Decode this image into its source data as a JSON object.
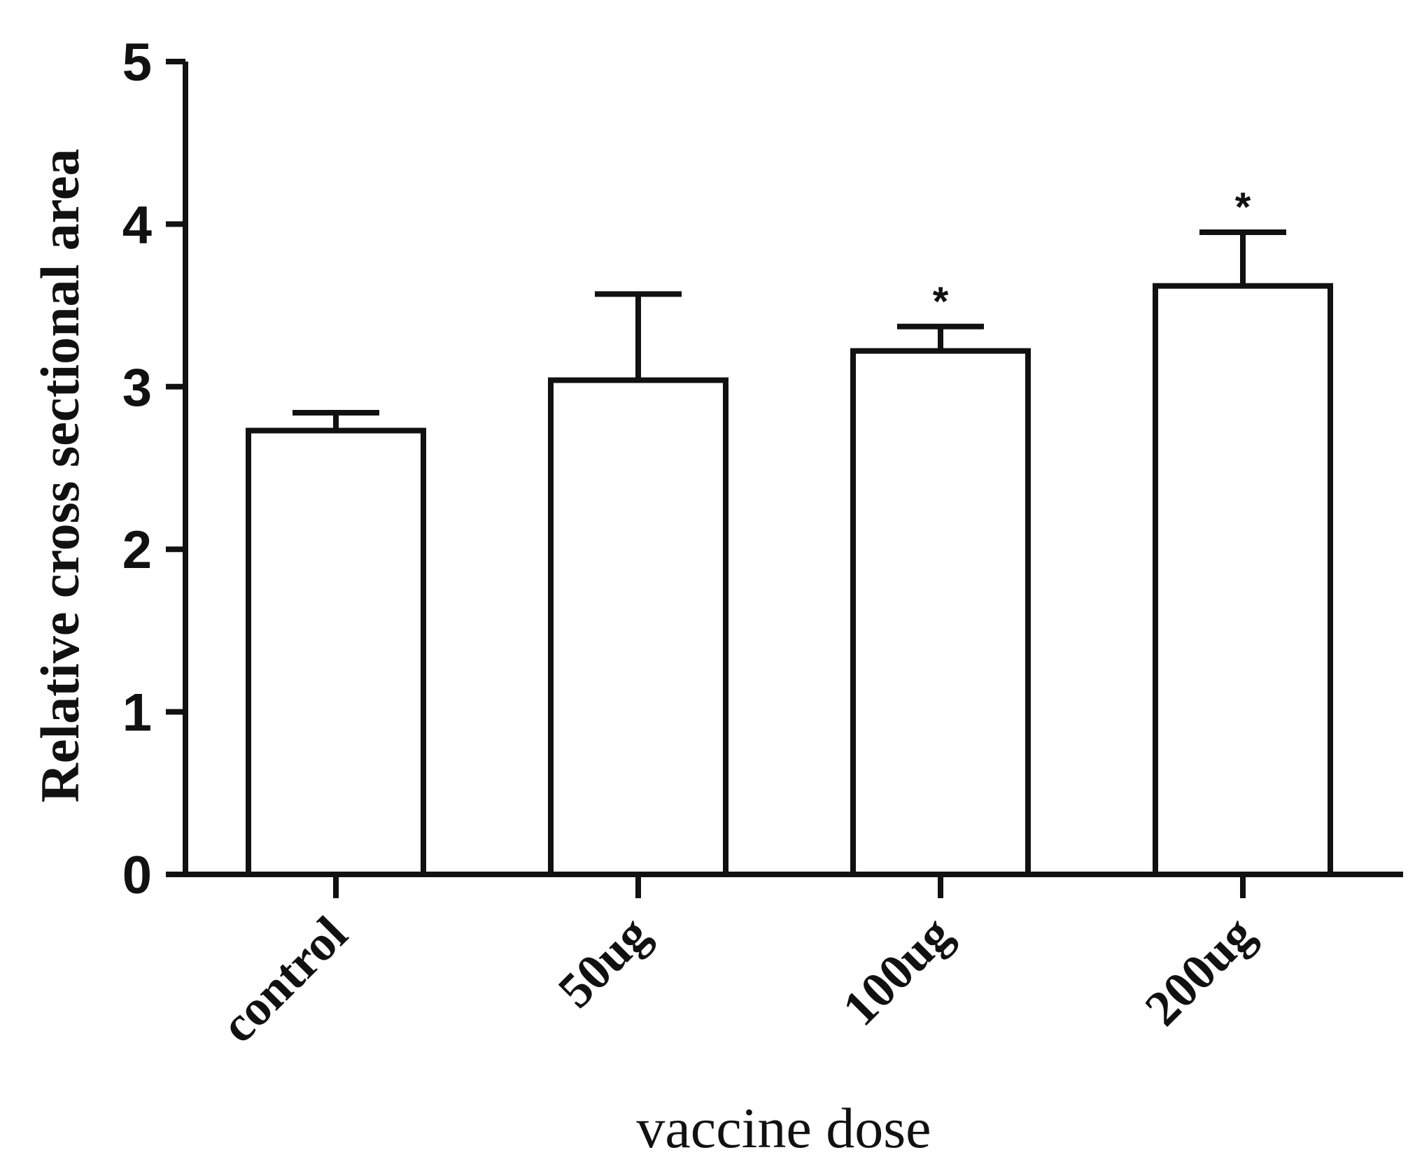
{
  "chart_data": {
    "type": "bar",
    "categories": [
      "control",
      "50ug",
      "100ug",
      "200ug"
    ],
    "values": [
      2.73,
      3.04,
      3.22,
      3.62
    ],
    "errors": [
      0.11,
      0.53,
      0.15,
      0.33
    ],
    "significance": [
      "",
      "",
      "*",
      "*"
    ],
    "xlabel": "vaccine dose",
    "ylabel": "Relative cross sectional area",
    "ylim": [
      0,
      5
    ],
    "yticks": [
      0,
      1,
      2,
      3,
      4,
      5
    ],
    "bar_fill": "#ffffff",
    "stroke_color": "#111111",
    "grid": false
  }
}
